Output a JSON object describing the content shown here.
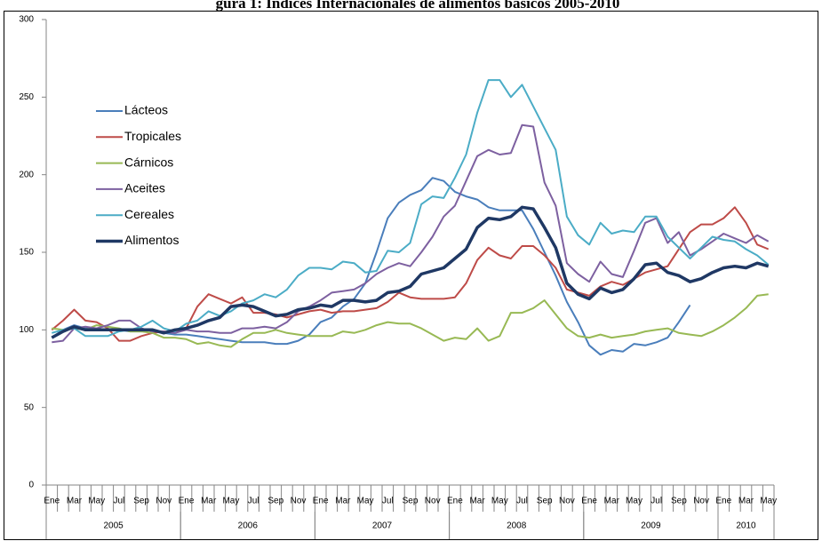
{
  "chart_data": {
    "type": "line",
    "title": "gura 1: Índices Internacionales de alimentos básicos 2005-2010",
    "categories": [
      "Ene",
      null,
      "Mar",
      null,
      "May",
      null,
      "Jul",
      null,
      "Sep",
      null,
      "Nov",
      null,
      "Ene",
      null,
      "Mar",
      null,
      "May",
      null,
      "Jul",
      null,
      "Sep",
      null,
      "Nov",
      null,
      "Ene",
      null,
      "Mar",
      null,
      "May",
      null,
      "Jul",
      null,
      "Sep",
      null,
      "Nov",
      null,
      "Ene",
      null,
      "Mar",
      null,
      "May",
      null,
      "Jul",
      null,
      "Sep",
      null,
      "Nov",
      null,
      "Ene",
      null,
      "Mar",
      null,
      "May",
      null,
      "Jul",
      null,
      "Sep",
      null,
      "Nov",
      null,
      "Ene",
      null,
      "Mar",
      null,
      "May"
    ],
    "years": [
      "2005",
      "2006",
      "2007",
      "2008",
      "2009",
      "2010"
    ],
    "ylim": [
      0,
      300
    ],
    "yticks": [
      0,
      50,
      100,
      150,
      200,
      250,
      300
    ],
    "grid": false,
    "legend": "upper-left",
    "series": [
      {
        "name": "Lácteos",
        "color": "#4a7ebb",
        "width": 2,
        "values": [
          95,
          100,
          103,
          101,
          100,
          100,
          100,
          99,
          99,
          100,
          98,
          97,
          97,
          96,
          95,
          94,
          93,
          92,
          92,
          92,
          91,
          91,
          93,
          97,
          105,
          108,
          115,
          120,
          130,
          150,
          172,
          182,
          187,
          190,
          198,
          196,
          189,
          186,
          184,
          179,
          177,
          177,
          177,
          165,
          150,
          135,
          118,
          105,
          90,
          84,
          87,
          86,
          91,
          90,
          92,
          95,
          105,
          116,
          null,
          null,
          null,
          null,
          null,
          null,
          null
        ]
      },
      {
        "name": "Tropicales",
        "color": "#be4b48",
        "width": 2,
        "values": [
          100,
          106,
          113,
          106,
          105,
          101,
          93,
          93,
          96,
          98,
          99,
          98,
          101,
          115,
          123,
          120,
          117,
          121,
          111,
          111,
          110,
          108,
          110,
          112,
          113,
          111,
          112,
          112,
          113,
          114,
          118,
          124,
          121,
          120,
          120,
          120,
          121,
          130,
          145,
          153,
          148,
          146,
          154,
          154,
          148,
          140,
          126,
          124,
          122,
          128,
          131,
          129,
          133,
          137,
          139,
          141,
          152,
          163,
          168,
          168,
          172,
          179,
          169,
          155,
          152
        ]
      },
      {
        "name": "Cárnicos",
        "color": "#98b954",
        "width": 2,
        "values": [
          101,
          100,
          101,
          100,
          103,
          102,
          101,
          99,
          99,
          98,
          95,
          95,
          94,
          91,
          92,
          90,
          89,
          94,
          98,
          98,
          100,
          98,
          97,
          96,
          96,
          96,
          99,
          98,
          100,
          103,
          105,
          104,
          104,
          101,
          97,
          93,
          95,
          94,
          101,
          93,
          96,
          111,
          111,
          114,
          119,
          110,
          101,
          96,
          95,
          97,
          95,
          96,
          97,
          99,
          100,
          101,
          98,
          97,
          96,
          99,
          103,
          108,
          114,
          122,
          123
        ]
      },
      {
        "name": "Aceites",
        "color": "#7d60a0",
        "width": 2,
        "values": [
          92,
          93,
          101,
          102,
          101,
          103,
          106,
          106,
          101,
          99,
          99,
          98,
          100,
          99,
          99,
          98,
          98,
          101,
          101,
          102,
          101,
          105,
          112,
          115,
          119,
          124,
          125,
          126,
          130,
          136,
          140,
          143,
          141,
          150,
          160,
          173,
          180,
          196,
          212,
          216,
          213,
          214,
          232,
          231,
          195,
          180,
          143,
          136,
          131,
          144,
          136,
          134,
          151,
          169,
          172,
          156,
          163,
          148,
          152,
          157,
          162,
          159,
          156,
          161,
          157
        ]
      },
      {
        "name": "Cereales",
        "color": "#4bacc6",
        "width": 2,
        "values": [
          98,
          100,
          101,
          96,
          96,
          96,
          99,
          100,
          102,
          106,
          101,
          99,
          104,
          106,
          112,
          109,
          112,
          117,
          119,
          123,
          121,
          126,
          135,
          140,
          140,
          139,
          144,
          143,
          137,
          138,
          151,
          150,
          156,
          181,
          186,
          185,
          198,
          213,
          240,
          261,
          261,
          250,
          258,
          244,
          230,
          216,
          173,
          161,
          155,
          169,
          162,
          164,
          163,
          173,
          173,
          160,
          153,
          146,
          153,
          160,
          158,
          157,
          152,
          148,
          142
        ]
      },
      {
        "name": "Alimentos",
        "color": "#1f3864",
        "width": 3.5,
        "values": [
          95,
          99,
          102,
          100,
          100,
          100,
          100,
          100,
          100,
          100,
          98,
          100,
          101,
          103,
          106,
          108,
          115,
          116,
          115,
          112,
          109,
          110,
          113,
          114,
          116,
          115,
          119,
          119,
          118,
          119,
          124,
          125,
          128,
          136,
          138,
          140,
          146,
          152,
          166,
          172,
          171,
          173,
          179,
          178,
          166,
          153,
          130,
          123,
          120,
          127,
          124,
          126,
          133,
          142,
          143,
          137,
          135,
          131,
          133,
          137,
          140,
          141,
          140,
          143,
          141
        ]
      }
    ]
  }
}
